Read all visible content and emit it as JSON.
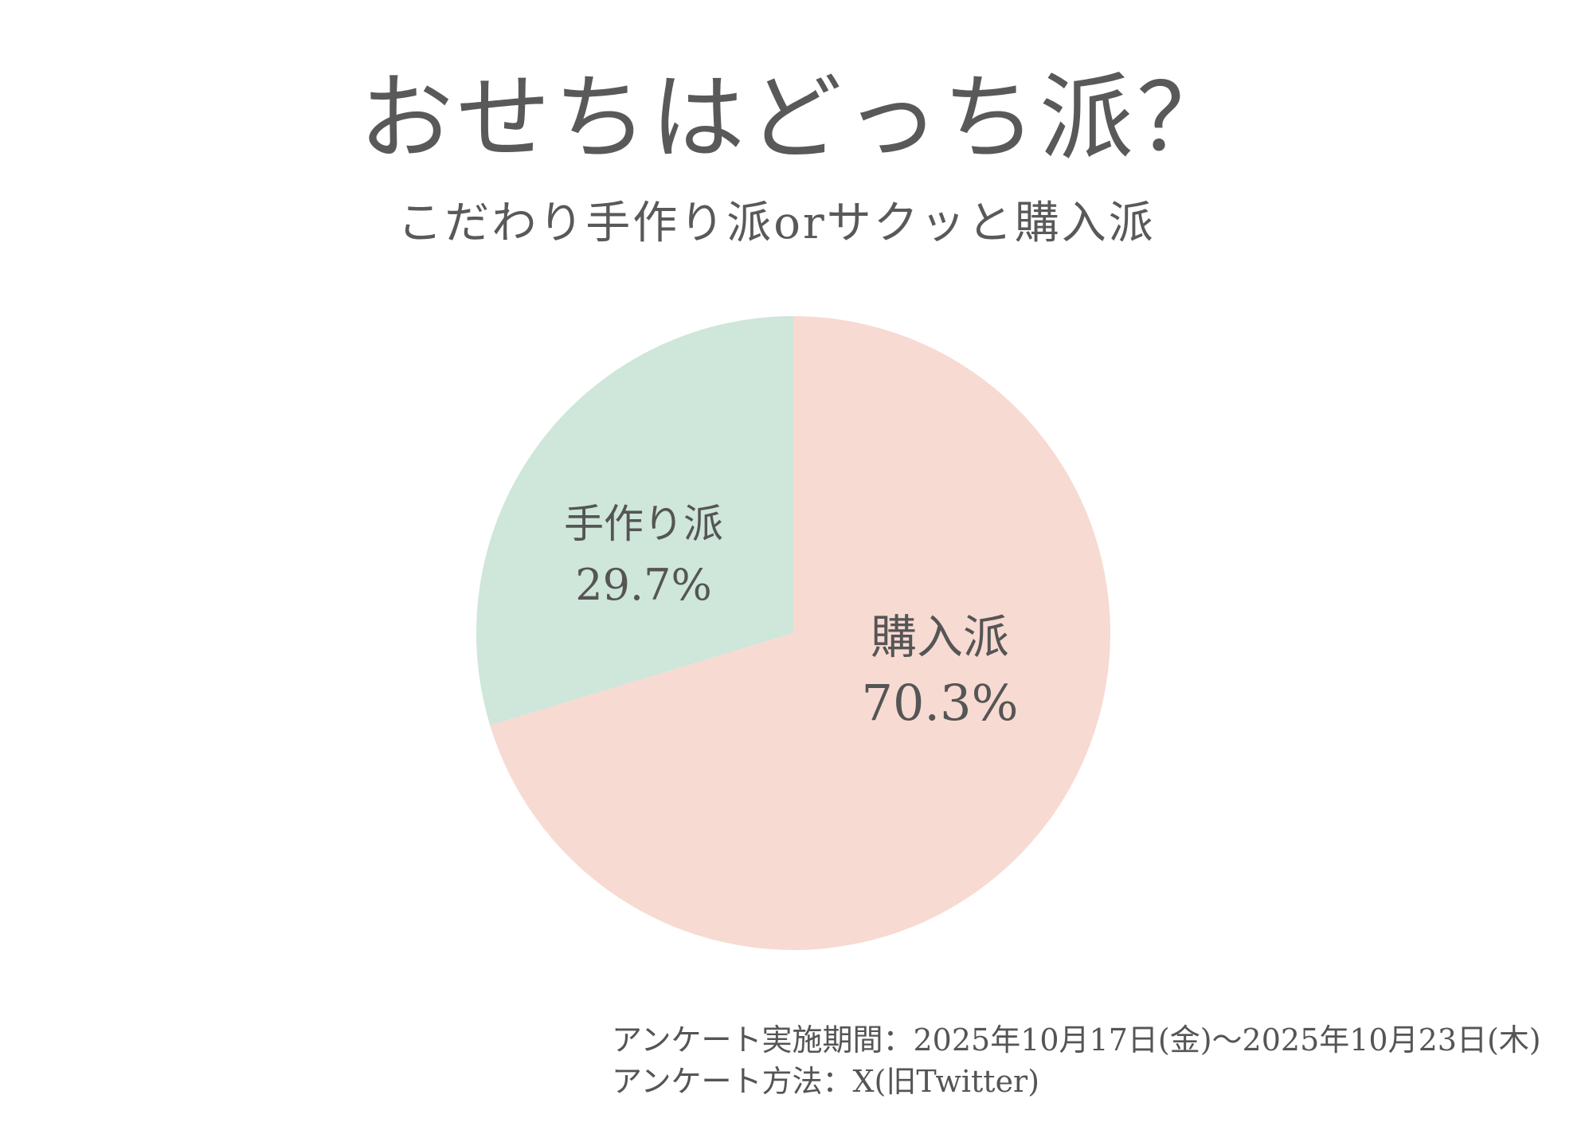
{
  "chart_data": {
    "type": "pie",
    "title": "おせちはどっち派？",
    "subtitle": "こだわり手作り派orサクッと購入派",
    "slices": [
      {
        "name": "購入派",
        "value": 70.3,
        "label": "70.3%",
        "color": "#f7dad2"
      },
      {
        "name": "手作り派",
        "value": 29.7,
        "label": "29.7%",
        "color": "#cfe6da"
      }
    ],
    "start": "12 o'clock",
    "direction": "clockwise"
  },
  "footer": {
    "period": "アンケート実施期間：2025年10月17日(金)～2025年10月23日(木)",
    "method": "アンケート方法：X(旧Twitter)"
  }
}
